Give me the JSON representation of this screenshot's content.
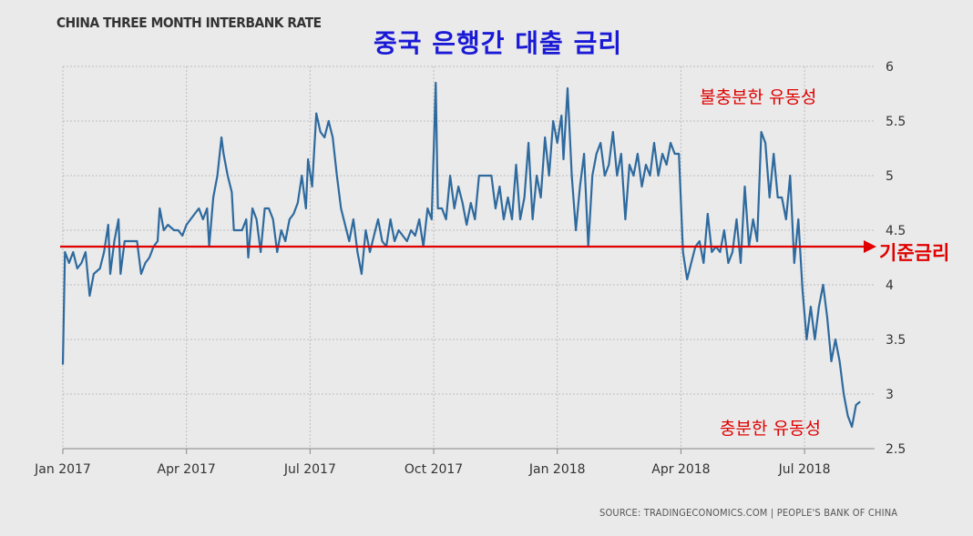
{
  "header": {
    "title": "CHINA THREE MONTH INTERBANK RATE",
    "korean_title": "중국 은행간 대출 금리"
  },
  "annotations": {
    "top": "불충분한 유동성",
    "bottom": "충분한 유동성",
    "reference_line": "기준금리"
  },
  "source": "SOURCE: TRADINGECONOMICS.COM | PEOPLE'S BANK OF CHINA",
  "colors": {
    "line": "#2e6a9e",
    "reference": "#e00000",
    "grid": "#bdbdbd",
    "background": "#eaeaea"
  },
  "chart_data": {
    "type": "line",
    "title": "CHINA THREE MONTH INTERBANK RATE",
    "xlabel": "",
    "ylabel": "",
    "ylim": [
      2.5,
      6
    ],
    "yticks": [
      2.5,
      3,
      3.5,
      4,
      4.5,
      5,
      5.5,
      6
    ],
    "xticks": [
      {
        "label": "Jan 2017",
        "x": 0
      },
      {
        "label": "Apr 2017",
        "x": 3
      },
      {
        "label": "Jul 2017",
        "x": 6
      },
      {
        "label": "Oct 2017",
        "x": 9
      },
      {
        "label": "Jan 2018",
        "x": 12
      },
      {
        "label": "Apr 2018",
        "x": 15
      },
      {
        "label": "Jul 2018",
        "x": 18
      }
    ],
    "x_unit": "months since Jan 2017",
    "xlim": [
      0,
      19.7
    ],
    "reference_line": {
      "y": 4.35,
      "label": "기준금리"
    },
    "grid": true,
    "series": [
      {
        "name": "",
        "points": [
          [
            0.0,
            3.27
          ],
          [
            0.05,
            4.3
          ],
          [
            0.15,
            4.2
          ],
          [
            0.25,
            4.3
          ],
          [
            0.35,
            4.15
          ],
          [
            0.45,
            4.2
          ],
          [
            0.55,
            4.3
          ],
          [
            0.65,
            3.9
          ],
          [
            0.75,
            4.1
          ],
          [
            0.9,
            4.15
          ],
          [
            1.0,
            4.3
          ],
          [
            1.1,
            4.55
          ],
          [
            1.15,
            4.1
          ],
          [
            1.25,
            4.4
          ],
          [
            1.35,
            4.6
          ],
          [
            1.4,
            4.1
          ],
          [
            1.5,
            4.4
          ],
          [
            1.65,
            4.4
          ],
          [
            1.8,
            4.4
          ],
          [
            1.9,
            4.1
          ],
          [
            2.0,
            4.2
          ],
          [
            2.1,
            4.25
          ],
          [
            2.2,
            4.35
          ],
          [
            2.3,
            4.4
          ],
          [
            2.35,
            4.7
          ],
          [
            2.45,
            4.5
          ],
          [
            2.55,
            4.55
          ],
          [
            2.7,
            4.5
          ],
          [
            2.8,
            4.5
          ],
          [
            2.9,
            4.45
          ],
          [
            3.0,
            4.55
          ],
          [
            3.1,
            4.6
          ],
          [
            3.2,
            4.65
          ],
          [
            3.3,
            4.7
          ],
          [
            3.4,
            4.6
          ],
          [
            3.5,
            4.7
          ],
          [
            3.55,
            4.35
          ],
          [
            3.65,
            4.8
          ],
          [
            3.75,
            5.0
          ],
          [
            3.85,
            5.35
          ],
          [
            3.9,
            5.2
          ],
          [
            4.0,
            5.0
          ],
          [
            4.1,
            4.85
          ],
          [
            4.15,
            4.5
          ],
          [
            4.25,
            4.5
          ],
          [
            4.35,
            4.5
          ],
          [
            4.45,
            4.6
          ],
          [
            4.5,
            4.25
          ],
          [
            4.6,
            4.7
          ],
          [
            4.7,
            4.6
          ],
          [
            4.8,
            4.3
          ],
          [
            4.9,
            4.7
          ],
          [
            5.0,
            4.7
          ],
          [
            5.1,
            4.6
          ],
          [
            5.2,
            4.3
          ],
          [
            5.3,
            4.5
          ],
          [
            5.4,
            4.4
          ],
          [
            5.5,
            4.6
          ],
          [
            5.6,
            4.65
          ],
          [
            5.7,
            4.75
          ],
          [
            5.8,
            5.0
          ],
          [
            5.9,
            4.7
          ],
          [
            5.95,
            5.15
          ],
          [
            6.05,
            4.9
          ],
          [
            6.15,
            5.57
          ],
          [
            6.25,
            5.4
          ],
          [
            6.35,
            5.35
          ],
          [
            6.45,
            5.5
          ],
          [
            6.55,
            5.35
          ],
          [
            6.65,
            5.0
          ],
          [
            6.75,
            4.7
          ],
          [
            6.85,
            4.55
          ],
          [
            6.95,
            4.4
          ],
          [
            7.05,
            4.6
          ],
          [
            7.15,
            4.3
          ],
          [
            7.25,
            4.1
          ],
          [
            7.35,
            4.5
          ],
          [
            7.45,
            4.3
          ],
          [
            7.55,
            4.45
          ],
          [
            7.65,
            4.6
          ],
          [
            7.75,
            4.4
          ],
          [
            7.85,
            4.35
          ],
          [
            7.95,
            4.6
          ],
          [
            8.05,
            4.4
          ],
          [
            8.15,
            4.5
          ],
          [
            8.25,
            4.45
          ],
          [
            8.35,
            4.4
          ],
          [
            8.45,
            4.5
          ],
          [
            8.55,
            4.45
          ],
          [
            8.65,
            4.6
          ],
          [
            8.75,
            4.35
          ],
          [
            8.85,
            4.7
          ],
          [
            8.95,
            4.6
          ],
          [
            9.05,
            5.85
          ],
          [
            9.1,
            4.7
          ],
          [
            9.2,
            4.7
          ],
          [
            9.3,
            4.6
          ],
          [
            9.4,
            5.0
          ],
          [
            9.5,
            4.7
          ],
          [
            9.6,
            4.9
          ],
          [
            9.7,
            4.75
          ],
          [
            9.8,
            4.55
          ],
          [
            9.9,
            4.75
          ],
          [
            10.0,
            4.6
          ],
          [
            10.1,
            5.0
          ],
          [
            10.25,
            5.0
          ],
          [
            10.4,
            5.0
          ],
          [
            10.5,
            4.7
          ],
          [
            10.6,
            4.9
          ],
          [
            10.7,
            4.6
          ],
          [
            10.8,
            4.8
          ],
          [
            10.9,
            4.6
          ],
          [
            11.0,
            5.1
          ],
          [
            11.1,
            4.6
          ],
          [
            11.2,
            4.8
          ],
          [
            11.3,
            5.3
          ],
          [
            11.4,
            4.6
          ],
          [
            11.5,
            5.0
          ],
          [
            11.6,
            4.8
          ],
          [
            11.7,
            5.35
          ],
          [
            11.8,
            5.0
          ],
          [
            11.9,
            5.5
          ],
          [
            12.0,
            5.3
          ],
          [
            12.1,
            5.55
          ],
          [
            12.15,
            5.15
          ],
          [
            12.25,
            5.8
          ],
          [
            12.35,
            5.0
          ],
          [
            12.45,
            4.5
          ],
          [
            12.55,
            4.9
          ],
          [
            12.65,
            5.2
          ],
          [
            12.75,
            4.35
          ],
          [
            12.85,
            5.0
          ],
          [
            12.95,
            5.2
          ],
          [
            13.05,
            5.3
          ],
          [
            13.15,
            5.0
          ],
          [
            13.25,
            5.1
          ],
          [
            13.35,
            5.4
          ],
          [
            13.45,
            5.0
          ],
          [
            13.55,
            5.2
          ],
          [
            13.65,
            4.6
          ],
          [
            13.75,
            5.1
          ],
          [
            13.85,
            5.0
          ],
          [
            13.95,
            5.2
          ],
          [
            14.05,
            4.9
          ],
          [
            14.15,
            5.1
          ],
          [
            14.25,
            5.0
          ],
          [
            14.35,
            5.3
          ],
          [
            14.45,
            5.0
          ],
          [
            14.55,
            5.2
          ],
          [
            14.65,
            5.1
          ],
          [
            14.75,
            5.3
          ],
          [
            14.85,
            5.2
          ],
          [
            14.95,
            5.2
          ],
          [
            15.05,
            4.3
          ],
          [
            15.15,
            4.05
          ],
          [
            15.25,
            4.2
          ],
          [
            15.35,
            4.35
          ],
          [
            15.45,
            4.4
          ],
          [
            15.55,
            4.2
          ],
          [
            15.65,
            4.65
          ],
          [
            15.75,
            4.3
          ],
          [
            15.85,
            4.35
          ],
          [
            15.95,
            4.3
          ],
          [
            16.05,
            4.5
          ],
          [
            16.15,
            4.2
          ],
          [
            16.25,
            4.3
          ],
          [
            16.35,
            4.6
          ],
          [
            16.45,
            4.2
          ],
          [
            16.55,
            4.9
          ],
          [
            16.65,
            4.35
          ],
          [
            16.75,
            4.6
          ],
          [
            16.85,
            4.4
          ],
          [
            16.95,
            5.4
          ],
          [
            17.05,
            5.3
          ],
          [
            17.15,
            4.8
          ],
          [
            17.25,
            5.2
          ],
          [
            17.35,
            4.8
          ],
          [
            17.45,
            4.8
          ],
          [
            17.55,
            4.6
          ],
          [
            17.65,
            5.0
          ],
          [
            17.75,
            4.2
          ],
          [
            17.85,
            4.6
          ],
          [
            17.95,
            3.95
          ],
          [
            18.05,
            3.5
          ],
          [
            18.15,
            3.8
          ],
          [
            18.25,
            3.5
          ],
          [
            18.35,
            3.8
          ],
          [
            18.45,
            4.0
          ],
          [
            18.55,
            3.7
          ],
          [
            18.65,
            3.3
          ],
          [
            18.75,
            3.5
          ],
          [
            18.85,
            3.3
          ],
          [
            18.95,
            3.0
          ],
          [
            19.05,
            2.8
          ],
          [
            19.15,
            2.7
          ],
          [
            19.25,
            2.9
          ],
          [
            19.35,
            2.93
          ]
        ]
      }
    ]
  }
}
